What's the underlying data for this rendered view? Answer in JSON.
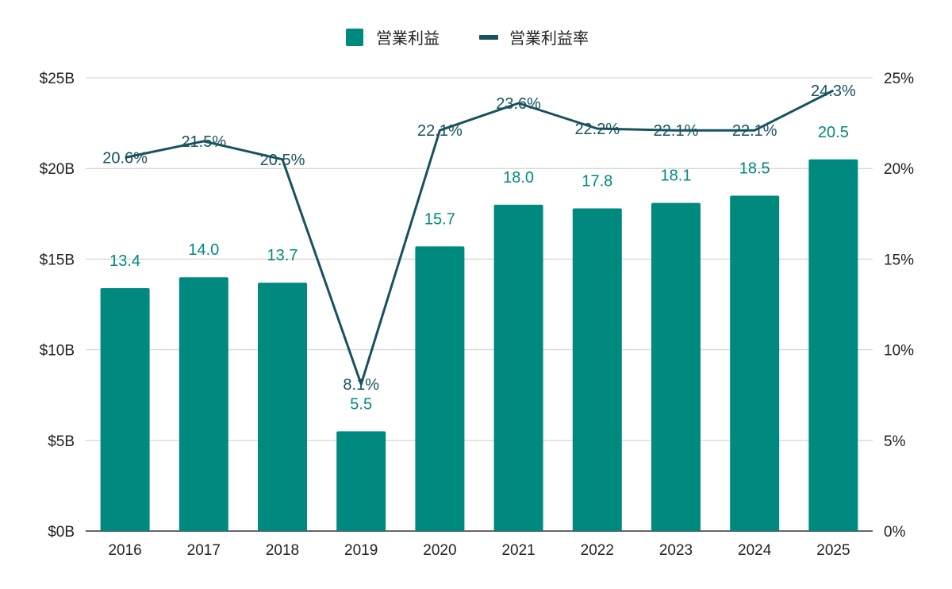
{
  "chart_data": {
    "type": "bar",
    "categories": [
      "2016",
      "2017",
      "2018",
      "2019",
      "2020",
      "2021",
      "2022",
      "2023",
      "2024",
      "2025"
    ],
    "series": [
      {
        "name": "営業利益",
        "type": "bar",
        "axis": "left",
        "values": [
          13.4,
          14.0,
          13.7,
          5.5,
          15.7,
          18.0,
          17.8,
          18.1,
          18.5,
          20.5
        ],
        "labels": [
          "13.4",
          "14.0",
          "13.7",
          "5.5",
          "15.7",
          "18.0",
          "17.8",
          "18.1",
          "18.5",
          "20.5"
        ],
        "color": "#00897f"
      },
      {
        "name": "営業利益率",
        "type": "line",
        "axis": "right",
        "values": [
          20.6,
          21.5,
          20.5,
          8.1,
          22.1,
          23.6,
          22.2,
          22.1,
          22.1,
          24.3
        ],
        "labels": [
          "20.6%",
          "21.5%",
          "20.5%",
          "8.1%",
          "22.1%",
          "23.6%",
          "22.2%",
          "22.1%",
          "22.1%",
          "24.3%"
        ],
        "color": "#17525e"
      }
    ],
    "y_left": {
      "min": 0,
      "max": 25,
      "ticks": [
        0,
        5,
        10,
        15,
        20,
        25
      ],
      "tick_labels": [
        "$0B",
        "$5B",
        "$10B",
        "$15B",
        "$20B",
        "$25B"
      ]
    },
    "y_right": {
      "min": 0,
      "max": 25,
      "ticks": [
        0,
        5,
        10,
        15,
        20,
        25
      ],
      "tick_labels": [
        "0%",
        "5%",
        "10%",
        "15%",
        "20%",
        "25%"
      ]
    },
    "grid": true,
    "legend_position": "top-center"
  }
}
